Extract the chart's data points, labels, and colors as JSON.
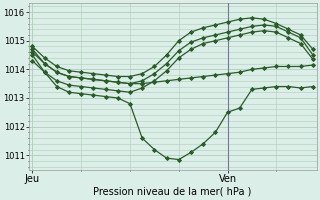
{
  "xlabel": "Pression niveau de la mer( hPa )",
  "ylim": [
    1010.5,
    1016.3
  ],
  "yticks": [
    1011,
    1012,
    1013,
    1014,
    1015,
    1016
  ],
  "xtick_labels": [
    "Jeu",
    "Ven"
  ],
  "xtick_positions": [
    0,
    16
  ],
  "vline_x": 16,
  "total_points": 24,
  "bg_color": "#dceee8",
  "grid_color": "#b0ccbb",
  "line_color": "#2a5c2a",
  "marker": "D",
  "markersize": 2.0,
  "series": [
    [
      1014.7,
      1014.2,
      1013.9,
      1013.75,
      1013.7,
      1013.65,
      1013.6,
      1013.55,
      1013.5,
      1013.5,
      1013.55,
      1013.6,
      1013.65,
      1013.7,
      1013.75,
      1013.8,
      1013.85,
      1013.9,
      1014.0,
      1014.05,
      1014.1,
      1014.1,
      1014.1,
      1014.15
    ],
    [
      1014.5,
      1013.9,
      1013.4,
      1013.2,
      1013.15,
      1013.1,
      1013.05,
      1013.0,
      1012.8,
      1011.6,
      1011.2,
      1010.9,
      1010.85,
      1011.1,
      1011.4,
      1011.8,
      1012.5,
      1012.65,
      1013.3,
      1013.35,
      1013.4,
      1013.4,
      1013.35,
      1013.4
    ],
    [
      1014.8,
      1014.4,
      1014.1,
      1013.95,
      1013.9,
      1013.85,
      1013.8,
      1013.75,
      1013.75,
      1013.85,
      1014.1,
      1014.5,
      1015.0,
      1015.3,
      1015.45,
      1015.55,
      1015.65,
      1015.75,
      1015.8,
      1015.75,
      1015.6,
      1015.4,
      1015.2,
      1014.7
    ],
    [
      1014.6,
      1014.2,
      1013.9,
      1013.75,
      1013.7,
      1013.65,
      1013.6,
      1013.55,
      1013.5,
      1013.6,
      1013.85,
      1014.2,
      1014.65,
      1014.95,
      1015.1,
      1015.2,
      1015.3,
      1015.4,
      1015.5,
      1015.55,
      1015.5,
      1015.3,
      1015.1,
      1014.5
    ],
    [
      1014.3,
      1013.9,
      1013.6,
      1013.45,
      1013.4,
      1013.35,
      1013.3,
      1013.25,
      1013.2,
      1013.35,
      1013.6,
      1013.95,
      1014.4,
      1014.7,
      1014.9,
      1015.0,
      1015.1,
      1015.2,
      1015.3,
      1015.35,
      1015.3,
      1015.1,
      1014.9,
      1014.35
    ]
  ]
}
